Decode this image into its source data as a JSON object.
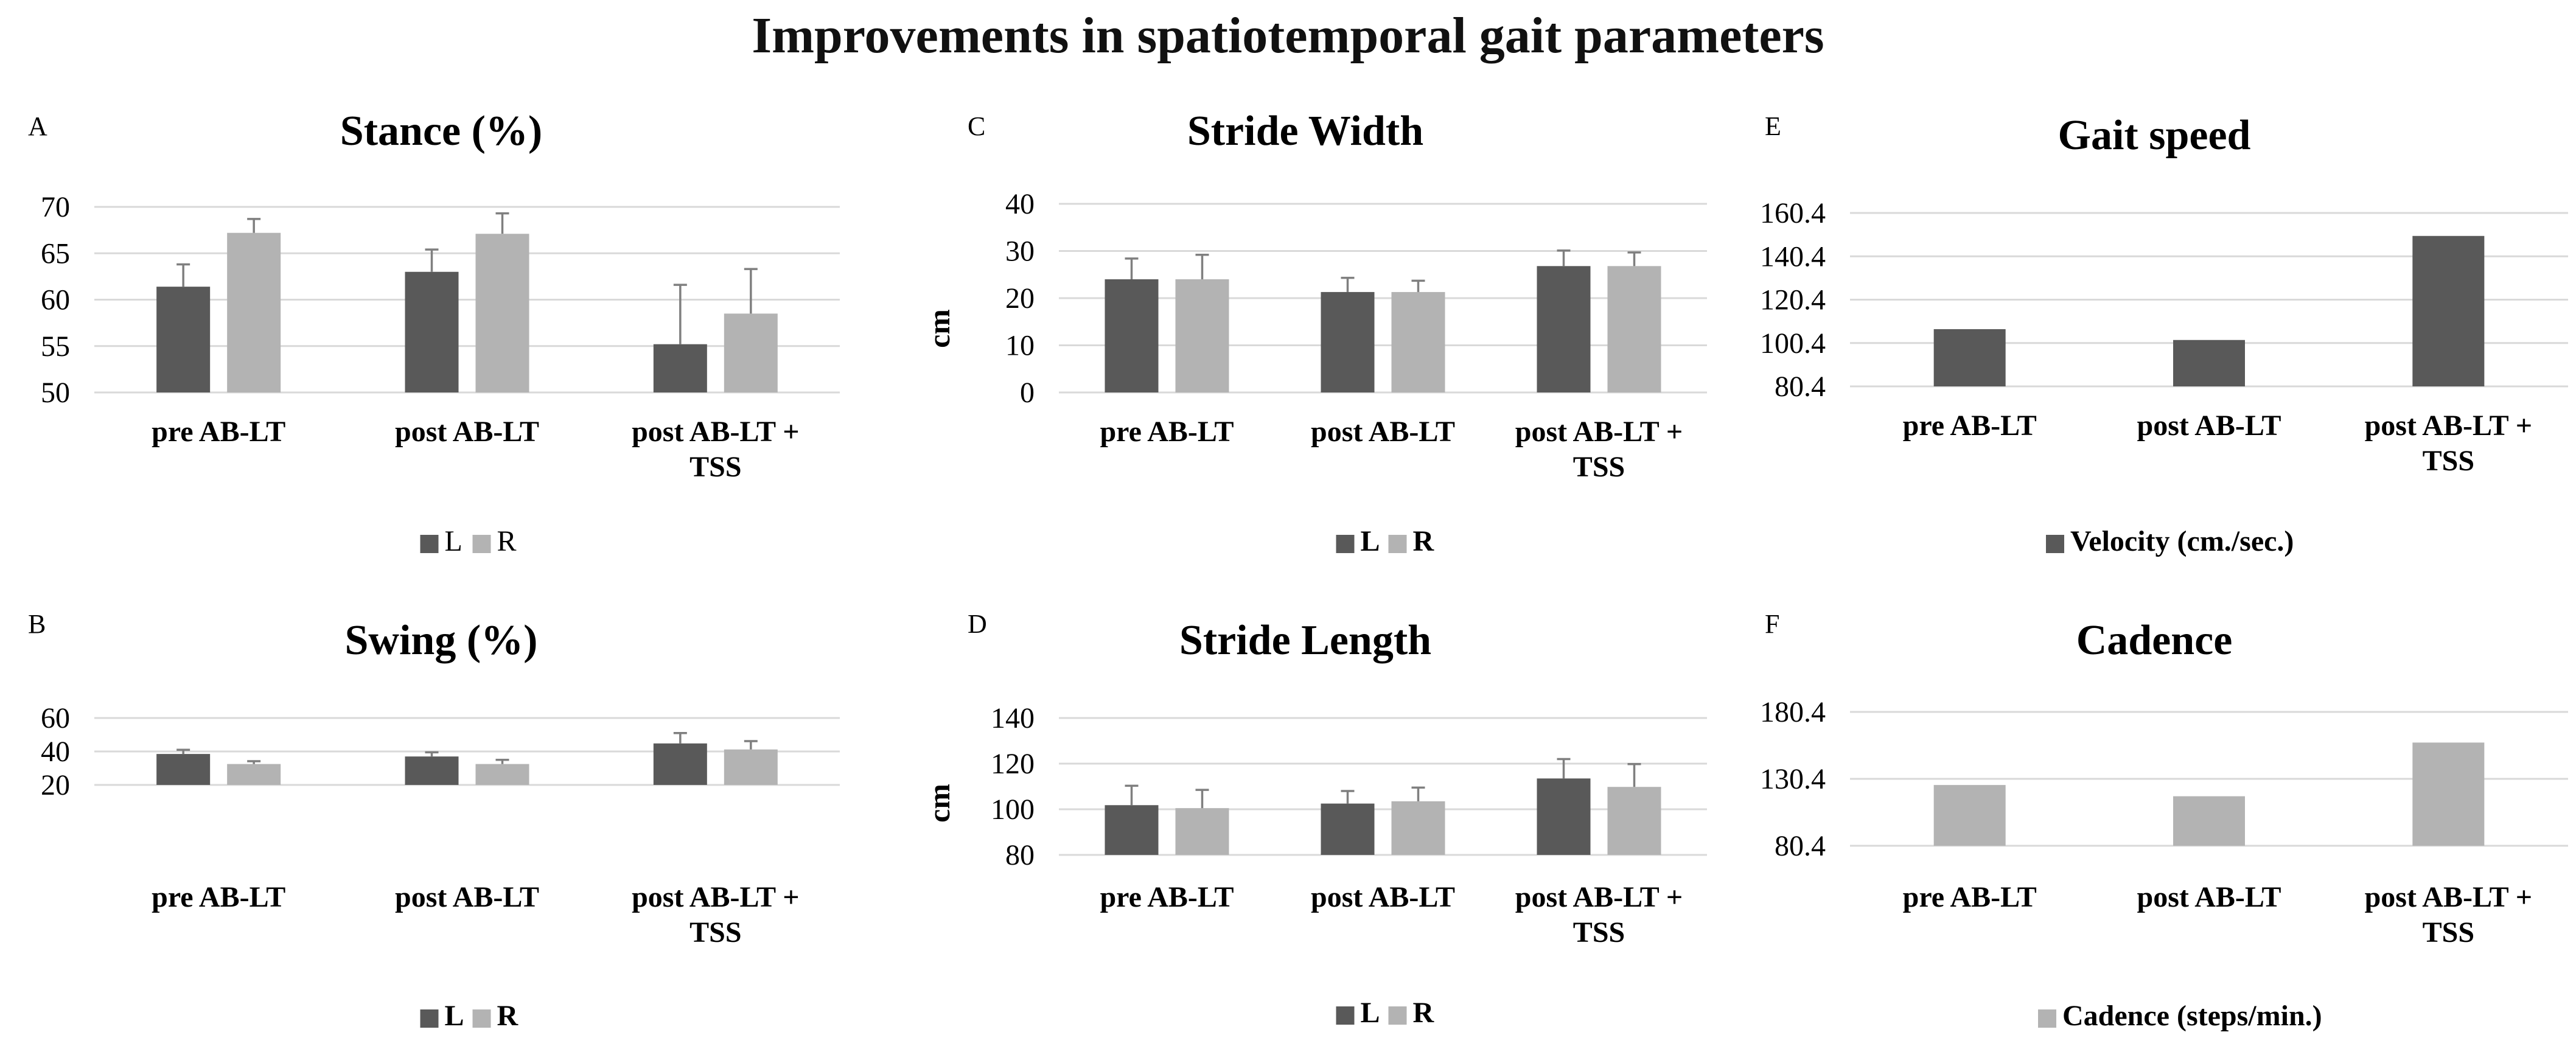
{
  "figure_title": "Improvements in spatiotemporal gait parameters",
  "colors": {
    "L": "#595959",
    "R": "#b3b3b3",
    "velocity": "#595959",
    "cadence": "#b3b3b3"
  },
  "chart_data": [
    {
      "id": "stance",
      "panel_label": "A",
      "type": "bar",
      "title": "Stance (%)",
      "xlabel": "",
      "ylabel": "",
      "categories": [
        "pre AB-LT",
        "post AB-LT",
        "post AB-LT + TSS"
      ],
      "ylim": [
        50,
        70
      ],
      "yticks": [
        "70",
        "65",
        "60",
        "55",
        "50"
      ],
      "grid": true,
      "legend_position": "bottom",
      "legend_bold": false,
      "series": [
        {
          "name": "L",
          "values": [
            61.4,
            63.0,
            55.2
          ],
          "errors": [
            2.4,
            2.4,
            6.4
          ]
        },
        {
          "name": "R",
          "values": [
            67.2,
            67.1,
            58.5
          ],
          "errors": [
            1.5,
            2.2,
            4.8
          ]
        }
      ]
    },
    {
      "id": "swing",
      "panel_label": "B",
      "type": "bar",
      "title": "Swing (%)",
      "xlabel": "",
      "ylabel": "",
      "categories": [
        "pre AB-LT",
        "post AB-LT",
        "post AB-LT + TSS"
      ],
      "ylim": [
        20,
        60
      ],
      "yticks": [
        "60",
        "40",
        "20"
      ],
      "grid": true,
      "legend_position": "bottom",
      "legend_bold": true,
      "series": [
        {
          "name": "L",
          "values": [
            38.5,
            37.0,
            44.8
          ],
          "errors": [
            2.5,
            2.5,
            6.2
          ]
        },
        {
          "name": "R",
          "values": [
            32.5,
            32.5,
            41.2
          ],
          "errors": [
            1.7,
            2.5,
            5.0
          ]
        }
      ]
    },
    {
      "id": "stride-width",
      "panel_label": "C",
      "type": "bar",
      "title": "Stride Width",
      "xlabel": "",
      "ylabel": "cm",
      "categories": [
        "pre AB-LT",
        "post AB-LT",
        "post AB-LT + TSS"
      ],
      "ylim": [
        0,
        40
      ],
      "yticks": [
        "40",
        "30",
        "20",
        "10",
        "0"
      ],
      "grid": true,
      "legend_position": "bottom",
      "legend_bold": true,
      "series": [
        {
          "name": "L",
          "values": [
            24.0,
            21.3,
            26.8
          ],
          "errors": [
            4.4,
            3.0,
            3.3
          ]
        },
        {
          "name": "R",
          "values": [
            24.0,
            21.3,
            26.8
          ],
          "errors": [
            5.2,
            2.4,
            2.9
          ]
        }
      ]
    },
    {
      "id": "stride-length",
      "panel_label": "D",
      "type": "bar",
      "title": "Stride Length",
      "xlabel": "",
      "ylabel": "cm",
      "categories": [
        "pre AB-LT",
        "post AB-LT",
        "post AB-LT + TSS"
      ],
      "ylim": [
        80,
        140
      ],
      "yticks": [
        "140",
        "120",
        "100",
        "80"
      ],
      "grid": true,
      "legend_position": "bottom",
      "legend_bold": true,
      "series": [
        {
          "name": "L",
          "values": [
            101.8,
            102.5,
            113.5
          ],
          "errors": [
            8.5,
            5.5,
            8.5
          ]
        },
        {
          "name": "R",
          "values": [
            100.5,
            103.5,
            109.8
          ],
          "errors": [
            8.0,
            6.0,
            10.0
          ]
        }
      ]
    },
    {
      "id": "gait-speed",
      "panel_label": "E",
      "type": "bar",
      "title": "Gait speed",
      "xlabel": "",
      "ylabel": "",
      "categories": [
        "pre AB-LT",
        "post AB-LT",
        "post AB-LT + TSS"
      ],
      "ylim": [
        80.4,
        160.4
      ],
      "yticks": [
        "160.4",
        "140.4",
        "120.4",
        "100.4",
        "80.4"
      ],
      "grid": true,
      "legend_position": "bottom",
      "legend_bold": true,
      "series": [
        {
          "name": "Velocity (cm./sec.)",
          "values": [
            106.8,
            101.8,
            149.8
          ]
        }
      ]
    },
    {
      "id": "cadence",
      "panel_label": "F",
      "type": "bar",
      "title": "Cadence",
      "xlabel": "",
      "ylabel": "",
      "categories": [
        "pre AB-LT",
        "post AB-LT",
        "post AB-LT + TSS"
      ],
      "ylim": [
        80.4,
        180.4
      ],
      "yticks": [
        "180.4",
        "130.4",
        "80.4"
      ],
      "grid": true,
      "legend_position": "bottom",
      "legend_bold": true,
      "series": [
        {
          "name": "Cadence (steps/min.)",
          "values": [
            125.8,
            117.4,
            157.5
          ]
        }
      ]
    }
  ]
}
